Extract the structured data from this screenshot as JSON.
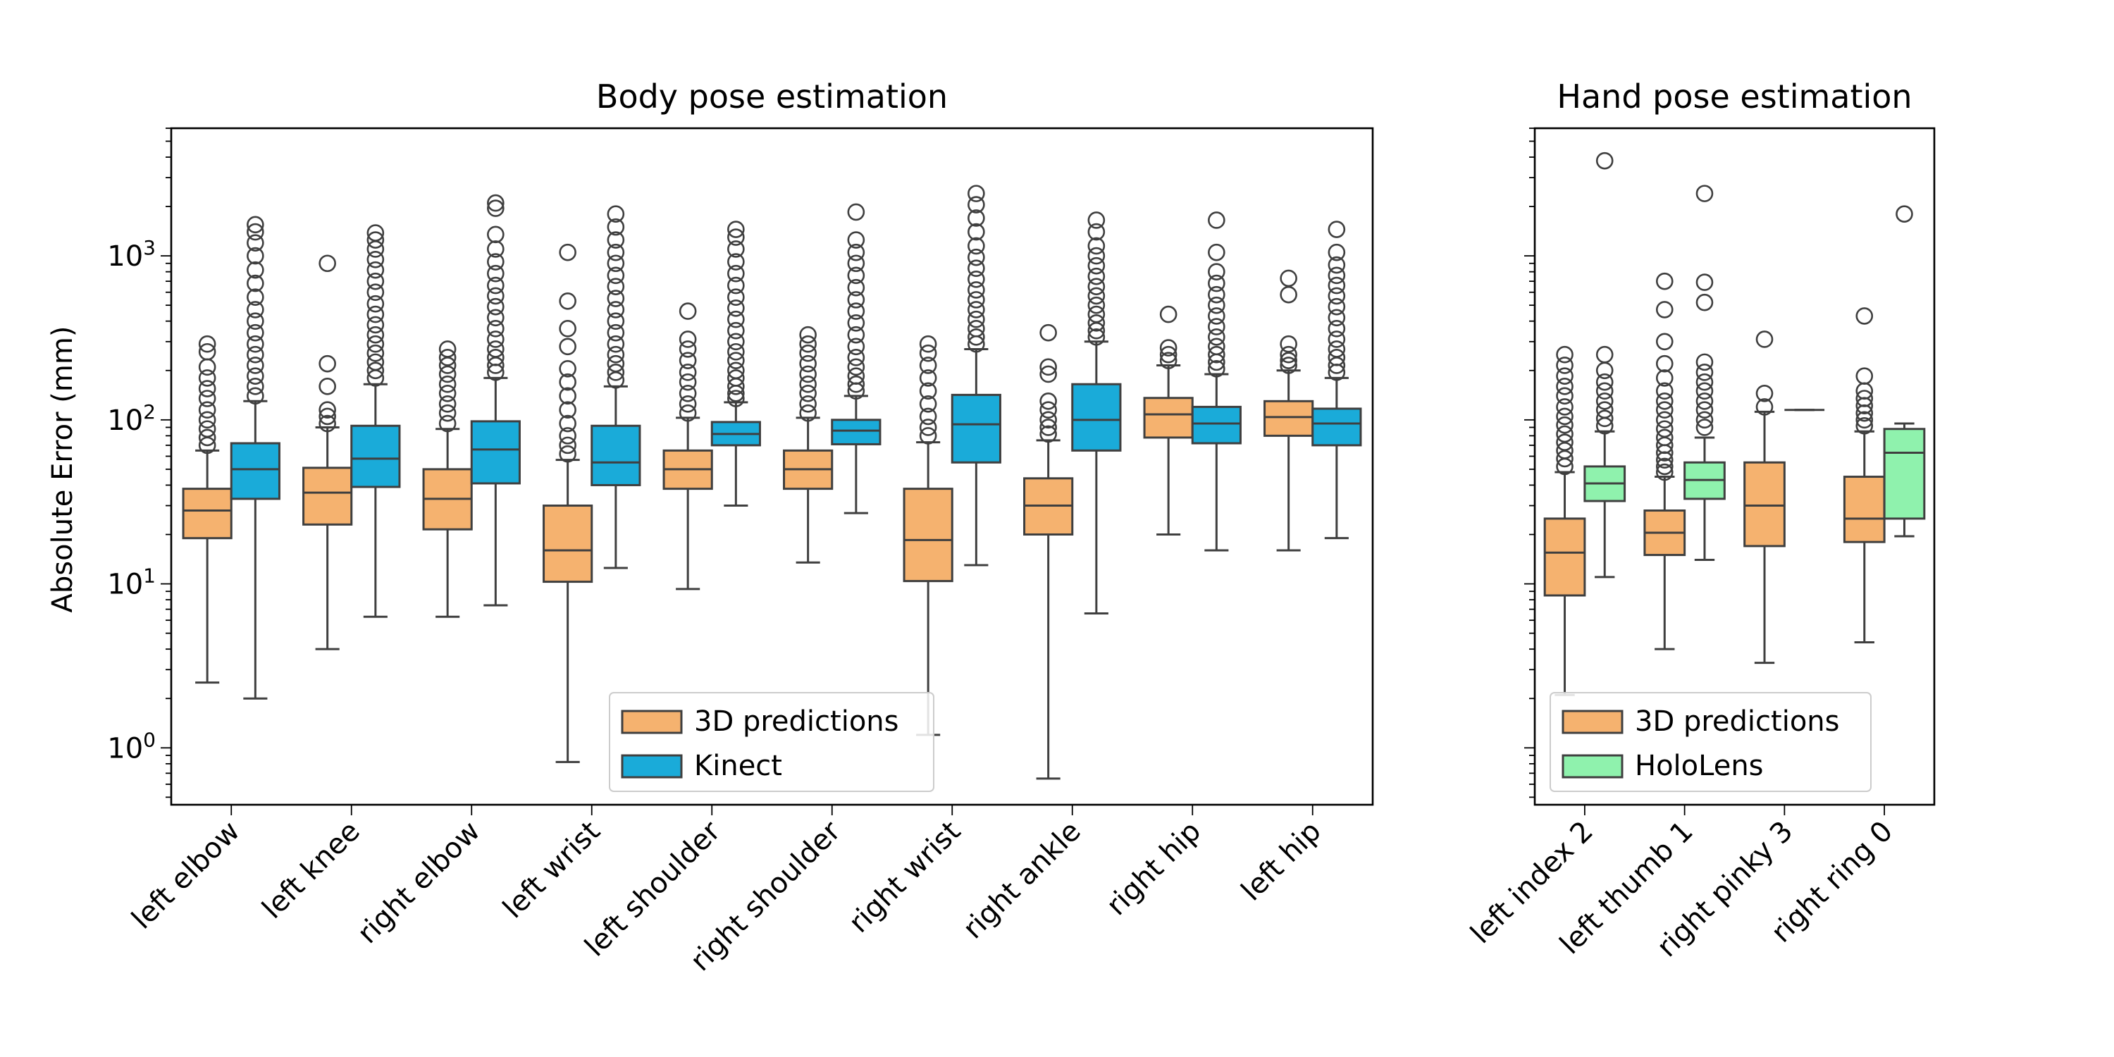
{
  "ylabel": "Absolute Error (mm)",
  "yticks": [
    {
      "value": 1,
      "base": "10",
      "exp": "0"
    },
    {
      "value": 10,
      "base": "10",
      "exp": "1"
    },
    {
      "value": 100,
      "base": "10",
      "exp": "2"
    },
    {
      "value": 1000,
      "base": "10",
      "exp": "3"
    }
  ],
  "colors": {
    "pred": "#f5b26f",
    "kinect": "#1aabd9",
    "holo": "#8ff2ad",
    "box_edge": "#3f3f3f"
  },
  "chart_data": [
    {
      "type": "box",
      "title": "Body pose estimation",
      "ylabel": "Absolute Error (mm)",
      "yscale": "log",
      "ylim": [
        0.45,
        6000
      ],
      "legend_position": "lower-center",
      "categories": [
        "left elbow",
        "left knee",
        "right elbow",
        "left wrist",
        "left shoulder",
        "right shoulder",
        "right wrist",
        "right ankle",
        "right hip",
        "left hip"
      ],
      "series": [
        {
          "name": "3D predictions",
          "color": "#f5b26f",
          "boxes": [
            {
              "whislo": 2.5,
              "q1": 19,
              "med": 28,
              "q3": 38,
              "whishi": 65,
              "fliers": [
                70,
                78,
                88,
                100,
                115,
                135,
                155,
                180,
                210,
                260,
                290
              ]
            },
            {
              "whislo": 4,
              "q1": 23,
              "med": 36,
              "q3": 51,
              "whishi": 90,
              "fliers": [
                95,
                105,
                115,
                160,
                220,
                900
              ]
            },
            {
              "whislo": 6.3,
              "q1": 21.5,
              "med": 33,
              "q3": 50,
              "whishi": 88,
              "fliers": [
                95,
                110,
                125,
                145,
                165,
                190,
                215,
                240,
                270
              ]
            },
            {
              "whislo": 0.82,
              "q1": 10.3,
              "med": 16,
              "q3": 30,
              "whishi": 57,
              "fliers": [
                62,
                70,
                80,
                95,
                115,
                140,
                170,
                205,
                280,
                360,
                530,
                1050
              ]
            },
            {
              "whislo": 9.3,
              "q1": 38,
              "med": 50,
              "q3": 65,
              "whishi": 103,
              "fliers": [
                110,
                125,
                145,
                170,
                195,
                230,
                270,
                310,
                460
              ]
            },
            {
              "whislo": 13.5,
              "q1": 38,
              "med": 50,
              "q3": 65,
              "whishi": 103,
              "fliers": [
                110,
                125,
                145,
                165,
                190,
                220,
                255,
                290,
                330
              ]
            },
            {
              "whislo": 1.2,
              "q1": 10.4,
              "med": 18.5,
              "q3": 38,
              "whishi": 73,
              "fliers": [
                80,
                90,
                105,
                125,
                150,
                180,
                215,
                255,
                290
              ]
            },
            {
              "whislo": 0.65,
              "q1": 20,
              "med": 30,
              "q3": 44,
              "whishi": 75,
              "fliers": [
                82,
                90,
                100,
                115,
                130,
                190,
                210,
                340
              ]
            },
            {
              "whislo": 20,
              "q1": 78,
              "med": 108,
              "q3": 136,
              "whishi": 215,
              "fliers": [
                230,
                250,
                275,
                440
              ]
            },
            {
              "whislo": 16,
              "q1": 80,
              "med": 104,
              "q3": 130,
              "whishi": 200,
              "fliers": [
                215,
                230,
                250,
                290,
                580,
                730
              ]
            }
          ]
        },
        {
          "name": "Kinect",
          "color": "#1aabd9",
          "boxes": [
            {
              "whislo": 2,
              "q1": 33,
              "med": 50,
              "q3": 72,
              "whishi": 130,
              "fliers": [
                140,
                160,
                185,
                215,
                250,
                290,
                340,
                400,
                470,
                560,
                680,
                820,
                1000,
                1200,
                1400,
                1550
              ]
            },
            {
              "whislo": 6.3,
              "q1": 39,
              "med": 58,
              "q3": 92,
              "whishi": 165,
              "fliers": [
                180,
                200,
                225,
                255,
                290,
                330,
                380,
                440,
                510,
                600,
                700,
                820,
                950,
                1100,
                1250,
                1380
              ]
            },
            {
              "whislo": 7.4,
              "q1": 41,
              "med": 66,
              "q3": 98,
              "whishi": 180,
              "fliers": [
                195,
                215,
                240,
                270,
                310,
                360,
                420,
                490,
                570,
                660,
                780,
                920,
                1100,
                1350,
                1950,
                2100
              ]
            },
            {
              "whislo": 12.5,
              "q1": 40,
              "med": 55,
              "q3": 92,
              "whishi": 160,
              "fliers": [
                175,
                195,
                220,
                250,
                290,
                340,
                400,
                470,
                550,
                650,
                760,
                900,
                1050,
                1250,
                1500,
                1800
              ]
            },
            {
              "whislo": 30,
              "q1": 70,
              "med": 82,
              "q3": 97,
              "whishi": 128,
              "fliers": [
                135,
                145,
                160,
                180,
                200,
                230,
                260,
                300,
                350,
                410,
                480,
                560,
                660,
                780,
                920,
                1100,
                1300,
                1450
              ]
            },
            {
              "whislo": 27,
              "q1": 71,
              "med": 86,
              "q3": 100,
              "whishi": 140,
              "fliers": [
                150,
                165,
                185,
                210,
                240,
                280,
                330,
                390,
                460,
                540,
                640,
                760,
                900,
                1050,
                1250,
                1850
              ]
            },
            {
              "whislo": 13,
              "q1": 55,
              "med": 94,
              "q3": 142,
              "whishi": 270,
              "fliers": [
                290,
                320,
                360,
                410,
                470,
                540,
                620,
                720,
                840,
                980,
                1150,
                1400,
                1700,
                2050,
                2400
              ]
            },
            {
              "whislo": 6.6,
              "q1": 65,
              "med": 100,
              "q3": 165,
              "whishi": 300,
              "fliers": [
                320,
                350,
                390,
                440,
                500,
                570,
                650,
                750,
                870,
                1000,
                1150,
                1400,
                1650
              ]
            },
            {
              "whislo": 16,
              "q1": 72,
              "med": 95,
              "q3": 120,
              "whishi": 190,
              "fliers": [
                205,
                225,
                250,
                280,
                320,
                370,
                430,
                500,
                580,
                680,
                800,
                1050,
                1650
              ]
            },
            {
              "whislo": 19,
              "q1": 70,
              "med": 95,
              "q3": 117,
              "whishi": 180,
              "fliers": [
                195,
                215,
                240,
                270,
                310,
                360,
                420,
                490,
                570,
                660,
                760,
                880,
                1050,
                1450
              ]
            }
          ]
        }
      ]
    },
    {
      "type": "box",
      "title": "Hand pose estimation",
      "yscale": "log",
      "ylim": [
        0.45,
        6000
      ],
      "legend_position": "lower-center",
      "categories": [
        "left index 2",
        "left thumb 1",
        "right pinky 3",
        "right ring 0"
      ],
      "series": [
        {
          "name": "3D predictions",
          "color": "#f5b26f",
          "boxes": [
            {
              "whislo": 2.1,
              "q1": 8.5,
              "med": 15.5,
              "q3": 25,
              "whishi": 48,
              "fliers": [
                52,
                58,
                65,
                73,
                82,
                93,
                105,
                120,
                140,
                160,
                185,
                215,
                250
              ]
            },
            {
              "whislo": 4,
              "q1": 15,
              "med": 20.5,
              "q3": 28,
              "whishi": 45,
              "fliers": [
                48,
                52,
                57,
                63,
                70,
                78,
                88,
                100,
                115,
                130,
                150,
                180,
                220,
                300,
                470,
                700
              ]
            },
            {
              "whislo": 3.3,
              "q1": 17,
              "med": 30,
              "q3": 55,
              "whishi": 112,
              "fliers": [
                120,
                145,
                310
              ]
            },
            {
              "whislo": 4.4,
              "q1": 18,
              "med": 25,
              "q3": 45,
              "whishi": 85,
              "fliers": [
                92,
                100,
                110,
                122,
                135,
                150,
                185,
                430
              ]
            }
          ]
        },
        {
          "name": "HoloLens",
          "color": "#8ff2ad",
          "boxes": [
            {
              "whislo": 11,
              "q1": 32,
              "med": 41,
              "q3": 52,
              "whishi": 85,
              "fliers": [
                92,
                102,
                115,
                130,
                150,
                170,
                200,
                250,
                3800
              ]
            },
            {
              "whislo": 14,
              "q1": 33,
              "med": 43,
              "q3": 55,
              "whishi": 78,
              "fliers": [
                90,
                100,
                115,
                130,
                150,
                170,
                195,
                225,
                520,
                690,
                2400
              ]
            },
            {
              "whislo": 115,
              "q1": 115,
              "med": 115,
              "q3": 115,
              "whishi": 115,
              "fliers": []
            },
            {
              "whislo": 19.5,
              "q1": 25,
              "med": 63,
              "q3": 88,
              "whishi": 95,
              "fliers": [
                1800
              ]
            }
          ]
        }
      ]
    }
  ]
}
